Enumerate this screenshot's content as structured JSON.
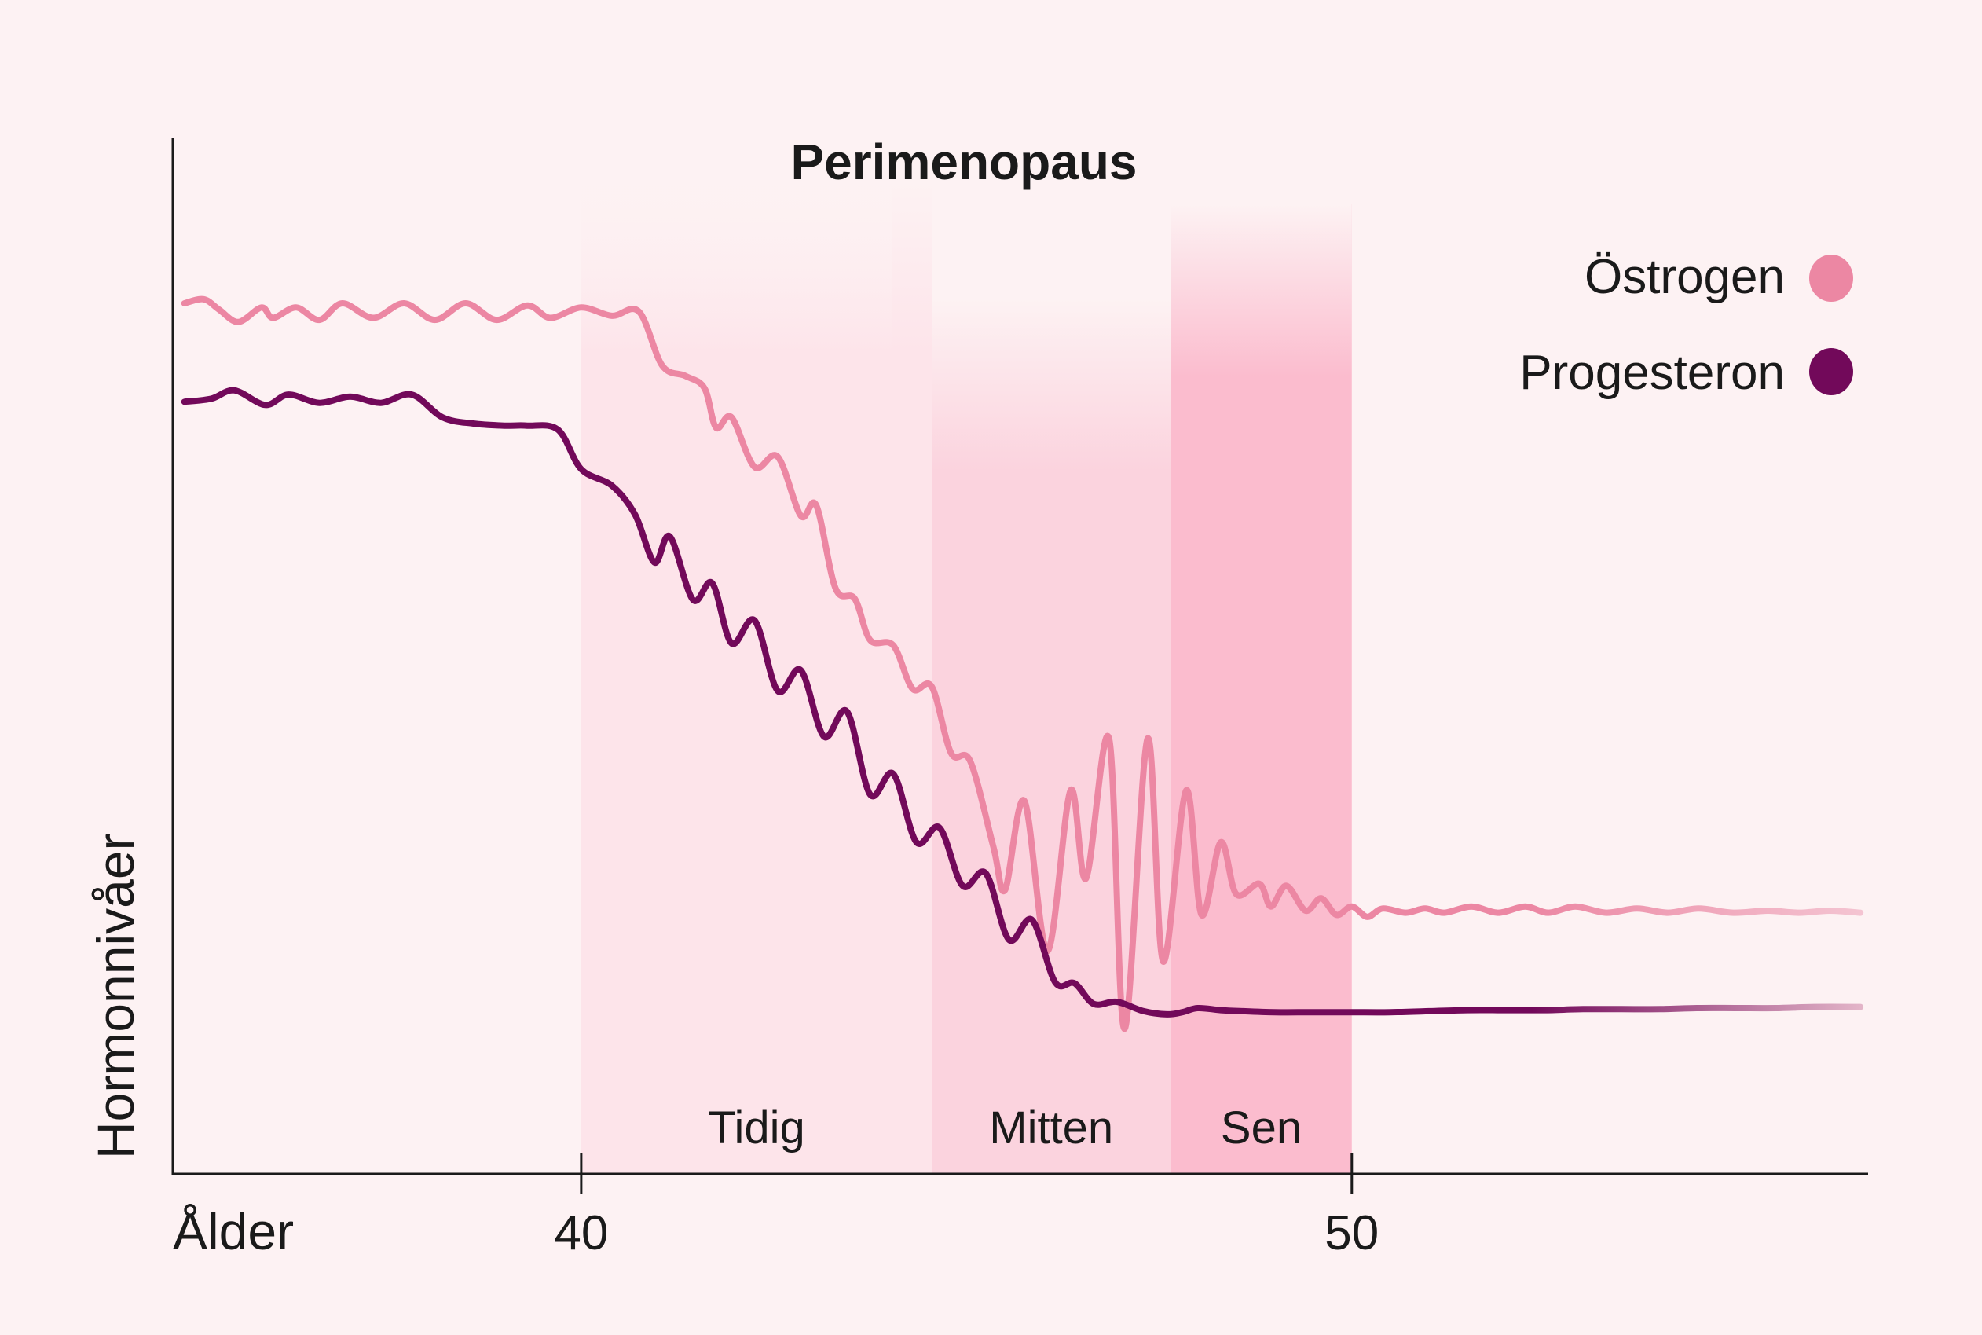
{
  "chart_data": {
    "type": "line",
    "title": "Perimenopaus",
    "xlabel": "Ålder",
    "ylabel": "Hormonnivåer",
    "xlim": [
      34.7,
      56.7
    ],
    "ylim": [
      0,
      100
    ],
    "xticks": [
      40,
      50
    ],
    "xtick_labels": [
      "40",
      "50"
    ],
    "legend": {
      "placement": "top-right",
      "entries": [
        "Östrogen",
        "Progesteron"
      ]
    },
    "phases": [
      {
        "label": "Tidig",
        "start": 40.0,
        "end": 44.55,
        "color": "#fde4ea"
      },
      {
        "label": "Mitten",
        "start": 44.55,
        "end": 47.65,
        "color": "#fbd3de"
      },
      {
        "label": "Sen",
        "start": 47.65,
        "end": 50.0,
        "color": "#fbbcce"
      }
    ],
    "series": [
      {
        "name": "Östrogen",
        "color": "#ec87a3",
        "x": [
          34.85,
          35.1,
          35.3,
          35.55,
          35.85,
          36.0,
          36.3,
          36.6,
          36.9,
          37.3,
          37.7,
          38.1,
          38.5,
          38.9,
          39.3,
          39.6,
          40.0,
          40.4,
          40.75,
          41.05,
          41.35,
          41.6,
          41.75,
          41.95,
          42.25,
          42.55,
          42.85,
          43.05,
          43.3,
          43.55,
          43.75,
          44.05,
          44.3,
          44.55,
          44.8,
          45.05,
          45.35,
          45.5,
          45.75,
          46.05,
          46.35,
          46.55,
          46.85,
          47.05,
          47.35,
          47.55,
          47.85,
          48.05,
          48.3,
          48.5,
          48.8,
          48.95,
          49.15,
          49.4,
          49.6,
          49.8,
          50.0,
          50.2,
          50.4,
          50.7,
          50.95,
          51.2,
          51.55,
          51.9,
          52.25,
          52.55,
          52.9,
          53.3,
          53.7,
          54.1,
          54.5,
          54.95,
          55.4,
          55.8,
          56.2,
          56.6
        ],
        "y": [
          84,
          84.4,
          83.4,
          82.2,
          83.6,
          82.6,
          83.6,
          82.4,
          84,
          82.6,
          84,
          82.4,
          84,
          82.4,
          83.8,
          82.6,
          83.6,
          82.8,
          83.2,
          78,
          77,
          75.8,
          72,
          73,
          68.2,
          69.2,
          63.5,
          64.5,
          56.5,
          55.5,
          51.5,
          51,
          46.8,
          47,
          40.6,
          39.8,
          31.5,
          27.4,
          36,
          21.5,
          37,
          28.5,
          42,
          14,
          42,
          20.5,
          37,
          25,
          32,
          27,
          28,
          25.8,
          27.8,
          25.4,
          26.6,
          25,
          25.8,
          24.8,
          25.6,
          25.2,
          25.6,
          25.2,
          25.8,
          25.2,
          25.8,
          25.2,
          25.8,
          25.2,
          25.6,
          25.2,
          25.6,
          25.2,
          25.4,
          25.2,
          25.4,
          25.2
        ]
      },
      {
        "name": "Progesteron",
        "color": "#72095a",
        "x": [
          34.85,
          35.2,
          35.5,
          35.9,
          36.2,
          36.6,
          37.0,
          37.4,
          37.8,
          38.2,
          38.6,
          39.0,
          39.3,
          39.7,
          40.0,
          40.4,
          40.7,
          40.95,
          41.15,
          41.45,
          41.7,
          41.95,
          42.25,
          42.55,
          42.85,
          43.15,
          43.45,
          43.75,
          44.05,
          44.35,
          44.65,
          44.95,
          45.25,
          45.55,
          45.85,
          46.15,
          46.4,
          46.65,
          46.95,
          47.3,
          47.6,
          47.8,
          48.0,
          48.3,
          48.6,
          49.0,
          49.5,
          50.0,
          50.5,
          51.0,
          51.5,
          52.0,
          52.5,
          53.0,
          53.5,
          54.0,
          54.5,
          55.0,
          55.5,
          56.0,
          56.6
        ],
        "y": [
          74.5,
          74.8,
          75.6,
          74.2,
          75.2,
          74.4,
          75.0,
          74.4,
          75.2,
          73.0,
          72.4,
          72.2,
          72.2,
          71.8,
          68,
          66.4,
          63.6,
          59,
          61.5,
          55.4,
          57.0,
          51.2,
          53.4,
          46.6,
          48.6,
          42.2,
          44.6,
          36.6,
          38.6,
          32,
          33.4,
          27.8,
          29,
          22.6,
          24.5,
          18.5,
          18.4,
          16.4,
          16.6,
          15.7,
          15.4,
          15.6,
          16.0,
          15.8,
          15.7,
          15.6,
          15.6,
          15.6,
          15.6,
          15.7,
          15.8,
          15.8,
          15.8,
          15.9,
          15.9,
          15.9,
          16.0,
          16.0,
          16.0,
          16.1,
          16.1
        ]
      }
    ]
  }
}
